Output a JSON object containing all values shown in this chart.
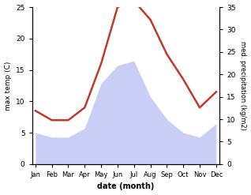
{
  "months": [
    "Jan",
    "Feb",
    "Mar",
    "Apr",
    "May",
    "Jun",
    "Jul",
    "Aug",
    "Sep",
    "Oct",
    "Nov",
    "Dec"
  ],
  "temp": [
    8.5,
    7.0,
    7.0,
    9.0,
    16.0,
    25.0,
    26.0,
    23.0,
    17.5,
    13.5,
    9.0,
    11.5
  ],
  "precip": [
    7,
    6,
    6,
    8,
    18,
    22,
    23,
    15,
    10,
    7,
    6,
    9
  ],
  "temp_color": "#c0392b",
  "precip_fill_color": "#c8cef5",
  "xlabel": "date (month)",
  "ylabel_left": "max temp (C)",
  "ylabel_right": "med. precipitation (kg/m2)",
  "ylim_left": [
    0,
    25
  ],
  "ylim_right": [
    0,
    35
  ],
  "yticks_left": [
    0,
    5,
    10,
    15,
    20,
    25
  ],
  "yticks_right": [
    0,
    5,
    10,
    15,
    20,
    25,
    30,
    35
  ],
  "bg_color": "#ffffff",
  "line_width": 1.8
}
